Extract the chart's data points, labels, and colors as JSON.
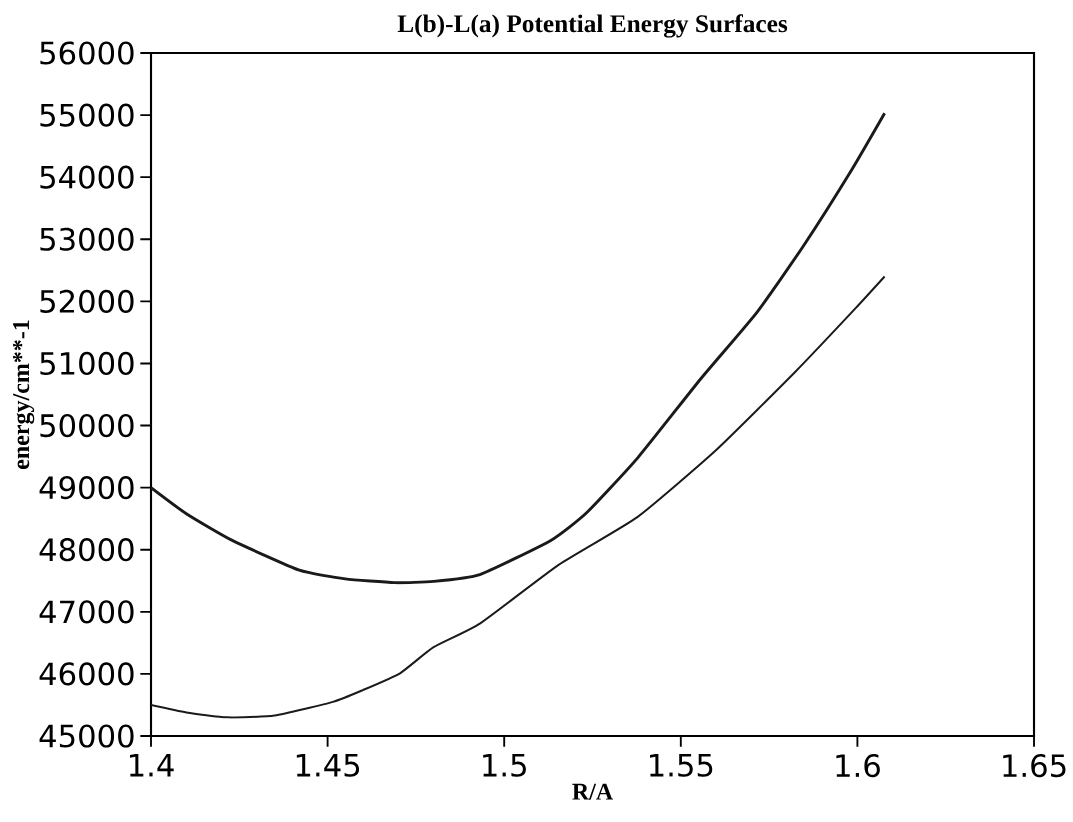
{
  "chart_data": {
    "type": "line",
    "title": "L(b)-L(a) Potential Energy Surfaces",
    "xlabel": "R/A",
    "ylabel": "energy/cm**-1",
    "xlim": [
      1.4,
      1.65
    ],
    "xticks": [
      1.4,
      1.45,
      1.5,
      1.55,
      1.6,
      1.65
    ],
    "ylim": [
      45000,
      56000
    ],
    "yticks": [
      45000,
      46000,
      47000,
      48000,
      49000,
      50000,
      51000,
      52000,
      53000,
      54000,
      55000,
      56000
    ],
    "grid": false,
    "marker": "none",
    "line_style": "solid",
    "series": [
      {
        "color": "#1a1a1a",
        "x": [
          1.4,
          1.41,
          1.423,
          1.442,
          1.455,
          1.469,
          1.48,
          1.4931,
          1.5132,
          1.5234,
          1.5378,
          1.5556,
          1.5715,
          1.5848,
          1.5984,
          1.6077
        ],
        "values": [
          49000,
          48580,
          48150,
          47670,
          47530,
          47470,
          47490,
          47600,
          48150,
          48600,
          49480,
          50750,
          51820,
          52900,
          54120,
          55030
        ]
      },
      {
        "color": "#1a1a1a",
        "x": [
          1.4,
          1.41,
          1.4215,
          1.435,
          1.4515,
          1.46,
          1.4705,
          1.48,
          1.4931,
          1.5155,
          1.5378,
          1.5601,
          1.5825,
          1.5995,
          1.6077
        ],
        "values": [
          45500,
          45380,
          45300,
          45330,
          45550,
          45740,
          46010,
          46430,
          46810,
          47760,
          48530,
          49610,
          50870,
          51890,
          52400
        ]
      }
    ]
  }
}
